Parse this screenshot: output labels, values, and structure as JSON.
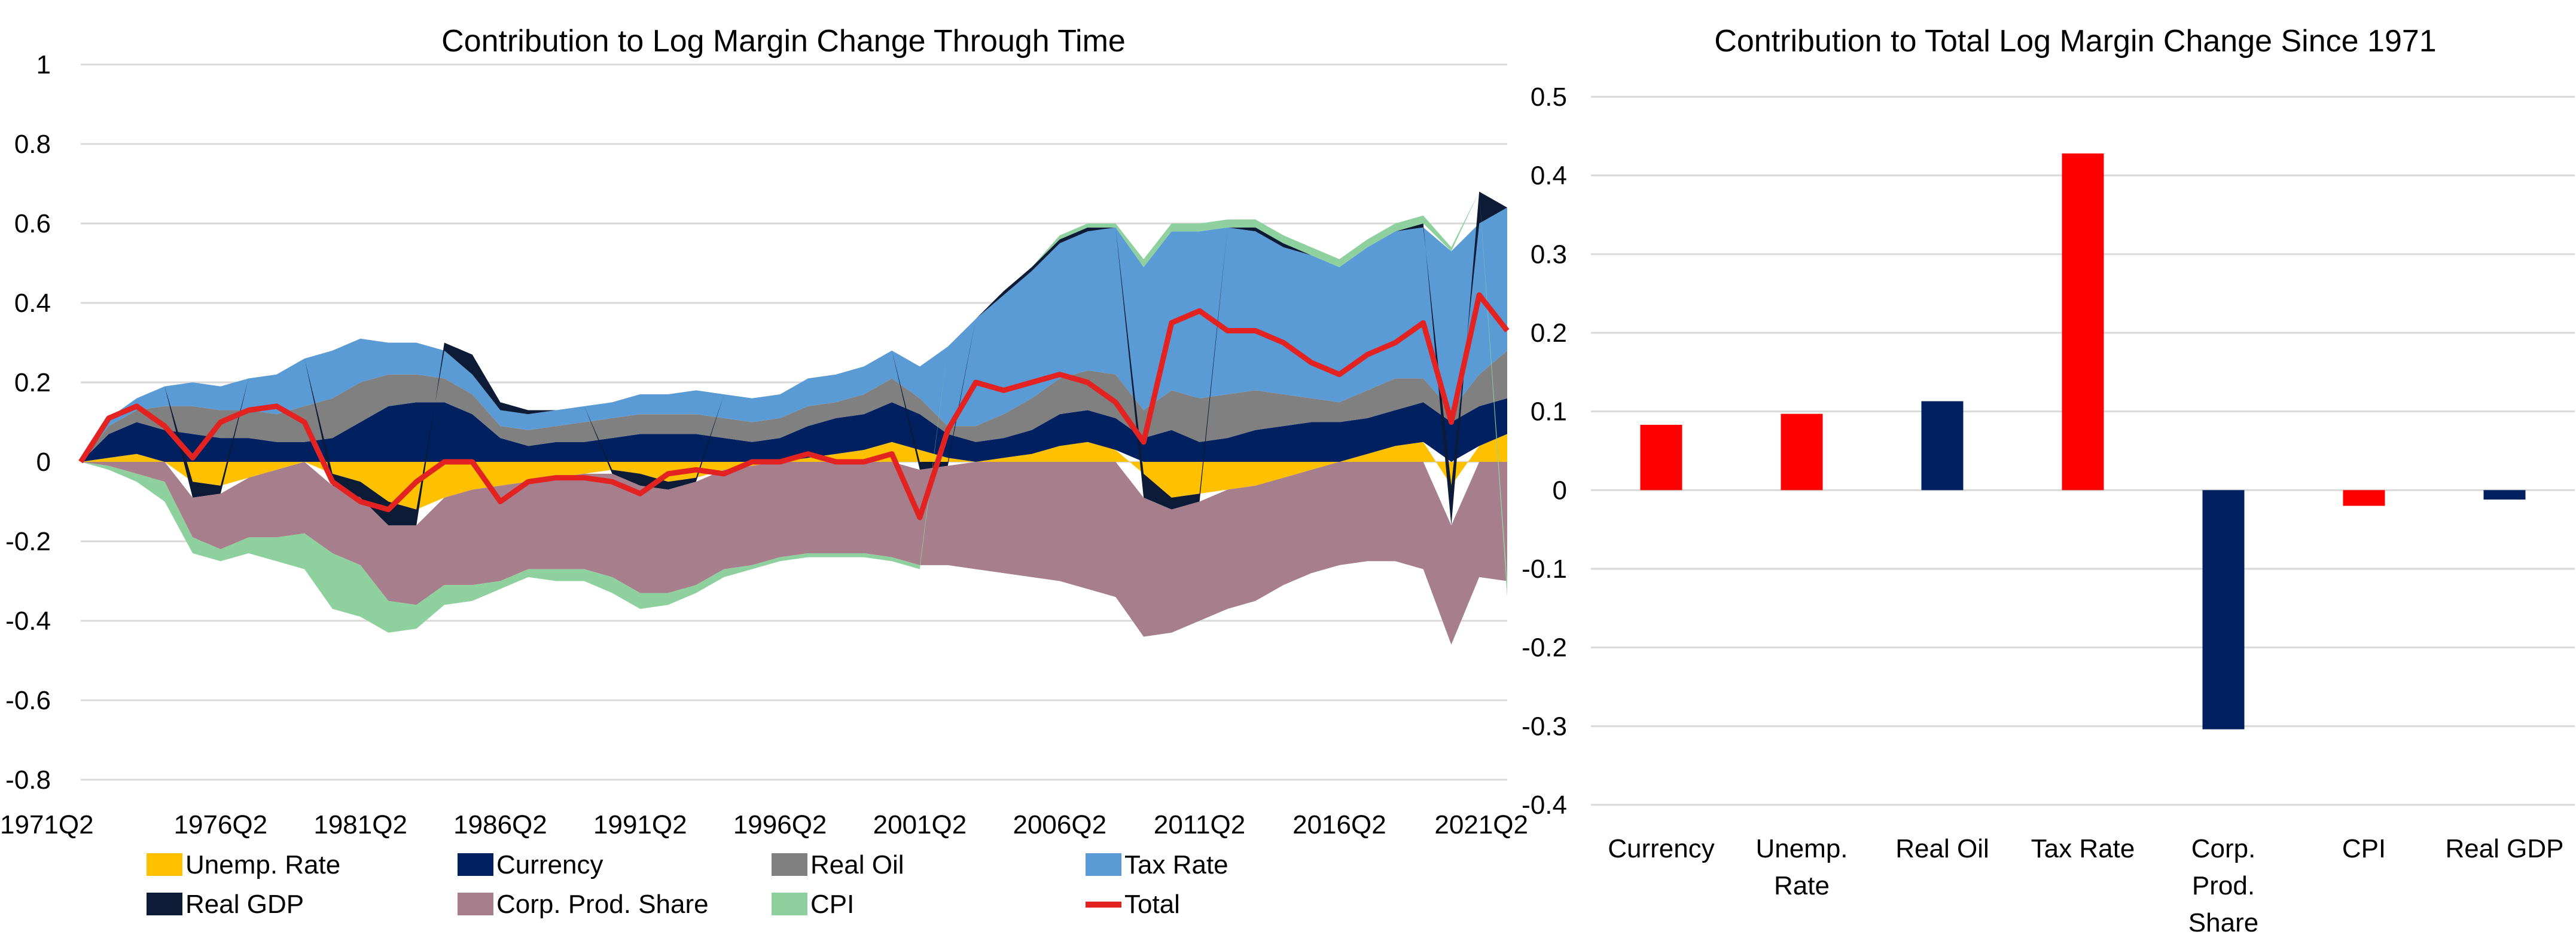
{
  "colors": {
    "unemp": "#ffc000",
    "currency": "#002060",
    "oil": "#808080",
    "tax": "#5b9bd5",
    "gdp": "#0d1b36",
    "corp": "#a77f8c",
    "cpi": "#8fd19e",
    "total": "#e32222",
    "bar_pos": "#ff0000",
    "bar_neg": "#002060"
  },
  "chart_data": [
    {
      "type": "area",
      "stacked": true,
      "title": "Contribution to Log Margin Change Through Time",
      "ylim": [
        -0.8,
        1
      ],
      "yticks": [
        "1",
        "0.8",
        "0.6",
        "0.4",
        "0.2",
        "0",
        "-0.2",
        "-0.4",
        "-0.6",
        "-0.8"
      ],
      "xticks": [
        "1971Q2",
        "1976Q2",
        "1981Q2",
        "1986Q2",
        "1991Q2",
        "1996Q2",
        "2001Q2",
        "2006Q2",
        "2011Q2",
        "2016Q2",
        "2021Q2"
      ],
      "grid": true,
      "legend_position": "bottom",
      "legend": [
        "Unemp. Rate",
        "Currency",
        "Real Oil",
        "Tax Rate",
        "Real GDP",
        "Corp. Prod. Share",
        "CPI",
        "Total"
      ],
      "x": [
        "1971Q2",
        "1972Q2",
        "1973Q2",
        "1974Q2",
        "1975Q2",
        "1976Q2",
        "1977Q2",
        "1978Q2",
        "1979Q2",
        "1980Q2",
        "1981Q2",
        "1982Q2",
        "1983Q2",
        "1984Q2",
        "1985Q2",
        "1986Q2",
        "1987Q2",
        "1988Q2",
        "1989Q2",
        "1990Q2",
        "1991Q2",
        "1992Q2",
        "1993Q2",
        "1994Q2",
        "1995Q2",
        "1996Q2",
        "1997Q2",
        "1998Q2",
        "1999Q2",
        "2000Q2",
        "2001Q2",
        "2002Q2",
        "2003Q2",
        "2004Q2",
        "2005Q2",
        "2006Q2",
        "2007Q2",
        "2008Q2",
        "2009Q2",
        "2010Q2",
        "2011Q2",
        "2012Q2",
        "2013Q2",
        "2014Q2",
        "2015Q2",
        "2016Q2",
        "2017Q2",
        "2018Q2",
        "2019Q2",
        "2020Q2",
        "2021Q2",
        "2022Q2"
      ],
      "series": [
        {
          "name": "Unemp. Rate",
          "values": [
            0,
            0.01,
            0.02,
            0,
            -0.05,
            -0.06,
            -0.04,
            -0.02,
            0,
            -0.03,
            -0.05,
            -0.1,
            -0.12,
            -0.09,
            -0.07,
            -0.06,
            -0.05,
            -0.04,
            -0.03,
            -0.02,
            -0.03,
            -0.05,
            -0.04,
            -0.02,
            -0.01,
            0,
            0.01,
            0.02,
            0.03,
            0.05,
            0.03,
            0.01,
            0,
            0.01,
            0.02,
            0.04,
            0.05,
            0.03,
            -0.03,
            -0.09,
            -0.08,
            -0.07,
            -0.06,
            -0.04,
            -0.02,
            0,
            0.02,
            0.04,
            0.05,
            -0.06,
            0.04,
            0.07
          ]
        },
        {
          "name": "Currency",
          "values": [
            0,
            0.06,
            0.08,
            0.08,
            0.07,
            0.06,
            0.06,
            0.05,
            0.05,
            0.06,
            0.1,
            0.14,
            0.15,
            0.15,
            0.12,
            0.06,
            0.04,
            0.05,
            0.05,
            0.06,
            0.07,
            0.07,
            0.07,
            0.06,
            0.05,
            0.06,
            0.08,
            0.09,
            0.09,
            0.1,
            0.09,
            0.06,
            0.05,
            0.05,
            0.06,
            0.08,
            0.08,
            0.08,
            0.06,
            0.08,
            0.05,
            0.06,
            0.08,
            0.09,
            0.1,
            0.1,
            0.09,
            0.09,
            0.1,
            0.1,
            0.1,
            0.09
          ]
        },
        {
          "name": "Real Oil",
          "values": [
            0,
            0.02,
            0.03,
            0.06,
            0.07,
            0.07,
            0.07,
            0.07,
            0.09,
            0.1,
            0.1,
            0.08,
            0.07,
            0.06,
            0.05,
            0.03,
            0.04,
            0.04,
            0.05,
            0.05,
            0.05,
            0.05,
            0.05,
            0.05,
            0.05,
            0.05,
            0.05,
            0.04,
            0.05,
            0.06,
            0.04,
            0.02,
            0.04,
            0.06,
            0.08,
            0.09,
            0.1,
            0.11,
            0.07,
            0.1,
            0.11,
            0.11,
            0.1,
            0.08,
            0.06,
            0.05,
            0.07,
            0.08,
            0.06,
            0.03,
            0.08,
            0.12
          ]
        },
        {
          "name": "Tax Rate",
          "values": [
            0,
            0.02,
            0.03,
            0.05,
            0.06,
            0.06,
            0.08,
            0.1,
            0.12,
            0.12,
            0.11,
            0.08,
            0.08,
            0.07,
            0.05,
            0.04,
            0.04,
            0.04,
            0.04,
            0.04,
            0.05,
            0.05,
            0.06,
            0.06,
            0.06,
            0.06,
            0.07,
            0.07,
            0.07,
            0.07,
            0.08,
            0.2,
            0.27,
            0.3,
            0.32,
            0.34,
            0.35,
            0.37,
            0.36,
            0.4,
            0.42,
            0.42,
            0.4,
            0.37,
            0.36,
            0.34,
            0.36,
            0.37,
            0.38,
            0.4,
            0.38,
            0.36
          ]
        },
        {
          "name": "Real GDP",
          "values": [
            0,
            0,
            0,
            0,
            -0.04,
            -0.02,
            0,
            0,
            0,
            -0.03,
            -0.04,
            -0.06,
            -0.04,
            0.02,
            0.05,
            0.02,
            0.01,
            0,
            0,
            -0.01,
            -0.03,
            -0.02,
            -0.01,
            0,
            0,
            0,
            0,
            0,
            0,
            0,
            -0.02,
            -0.01,
            0,
            0.01,
            0.01,
            0.01,
            0.01,
            0,
            -0.06,
            -0.03,
            -0.02,
            0,
            0.01,
            0.01,
            0,
            0,
            0,
            0,
            0.01,
            -0.1,
            0.08,
            0
          ]
        },
        {
          "name": "Corp. Prod. Share",
          "values": [
            0,
            -0.01,
            -0.03,
            -0.05,
            -0.1,
            -0.14,
            -0.15,
            -0.17,
            -0.18,
            -0.17,
            -0.17,
            -0.19,
            -0.2,
            -0.22,
            -0.24,
            -0.24,
            -0.22,
            -0.23,
            -0.24,
            -0.26,
            -0.27,
            -0.26,
            -0.26,
            -0.25,
            -0.25,
            -0.24,
            -0.23,
            -0.23,
            -0.23,
            -0.24,
            -0.24,
            -0.25,
            -0.27,
            -0.28,
            -0.29,
            -0.3,
            -0.32,
            -0.34,
            -0.35,
            -0.31,
            -0.3,
            -0.3,
            -0.29,
            -0.27,
            -0.26,
            -0.26,
            -0.25,
            -0.25,
            -0.27,
            -0.3,
            -0.29,
            -0.3
          ]
        },
        {
          "name": "CPI",
          "values": [
            0,
            -0.01,
            -0.02,
            -0.05,
            -0.04,
            -0.03,
            -0.04,
            -0.06,
            -0.09,
            -0.14,
            -0.13,
            -0.08,
            -0.06,
            -0.05,
            -0.04,
            -0.02,
            -0.02,
            -0.03,
            -0.03,
            -0.04,
            -0.04,
            -0.03,
            -0.02,
            -0.02,
            -0.01,
            -0.01,
            -0.01,
            -0.01,
            -0.01,
            -0.01,
            -0.01,
            0,
            0,
            0,
            0,
            0.01,
            0.01,
            0.01,
            0.02,
            0.02,
            0.02,
            0.02,
            0.02,
            0.02,
            0.02,
            0.02,
            0.02,
            0.02,
            0.02,
            0.01,
            0,
            -0.04
          ]
        },
        {
          "name": "Total",
          "values": [
            0,
            0.11,
            0.14,
            0.09,
            0.01,
            0.1,
            0.13,
            0.14,
            0.1,
            -0.05,
            -0.1,
            -0.12,
            -0.05,
            0,
            0,
            -0.1,
            -0.05,
            -0.04,
            -0.04,
            -0.05,
            -0.08,
            -0.03,
            -0.02,
            -0.03,
            0,
            0,
            0.02,
            0,
            0,
            0.02,
            -0.14,
            0.08,
            0.2,
            0.18,
            0.2,
            0.22,
            0.2,
            0.15,
            0.05,
            0.35,
            0.38,
            0.33,
            0.33,
            0.3,
            0.25,
            0.22,
            0.27,
            0.3,
            0.35,
            0.1,
            0.42,
            0.33
          ]
        }
      ]
    },
    {
      "type": "bar",
      "title": "Contribution to Total Log Margin Change Since 1971",
      "categories": [
        "Currency",
        "Unemp. Rate",
        "Real Oil",
        "Tax Rate",
        "Corp. Prod. Share",
        "CPI",
        "Real GDP"
      ],
      "category_lines": [
        [
          "Currency"
        ],
        [
          "Unemp.",
          "Rate"
        ],
        [
          "Real Oil"
        ],
        [
          "Tax Rate"
        ],
        [
          "Corp.",
          "Prod.",
          "Share"
        ],
        [
          "CPI"
        ],
        [
          "Real GDP"
        ]
      ],
      "values": [
        0.083,
        0.097,
        0.113,
        0.428,
        -0.304,
        -0.02,
        -0.012
      ],
      "bar_colors": [
        "#ff0000",
        "#ff0000",
        "#002060",
        "#ff0000",
        "#002060",
        "#ff0000",
        "#002060"
      ],
      "ylim": [
        -0.4,
        0.5
      ],
      "yticks": [
        "0.5",
        "0.4",
        "0.3",
        "0.2",
        "0.1",
        "0",
        "-0.1",
        "-0.2",
        "-0.3",
        "-0.4"
      ],
      "grid": true
    }
  ]
}
